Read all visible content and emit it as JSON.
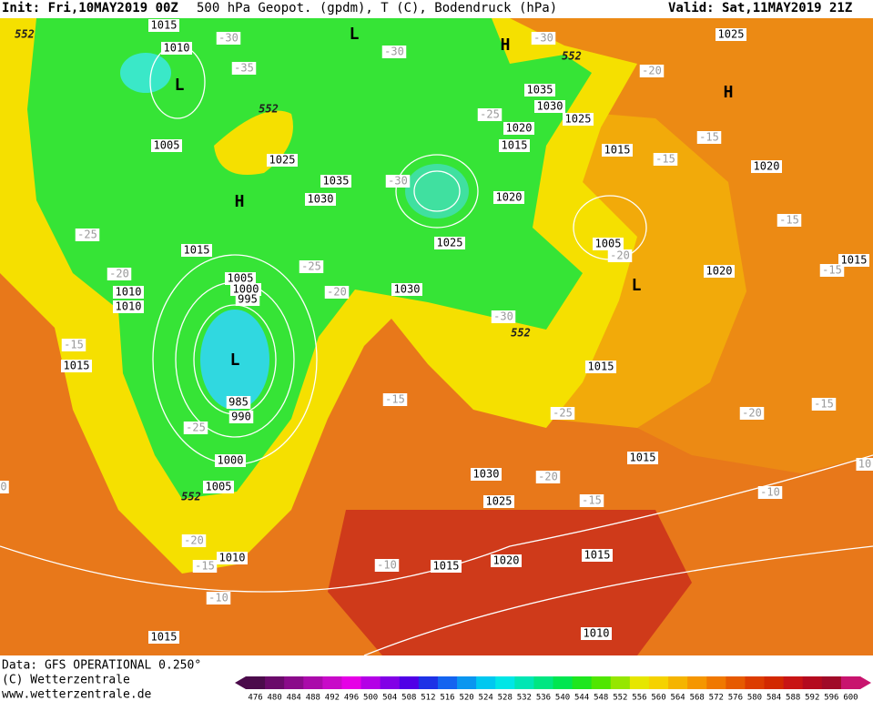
{
  "header": {
    "init": "Init: Fri,10MAY2019 00Z",
    "title": "500 hPa Geopot. (gpdm), T (C), Bodendruck (hPa)",
    "valid": "Valid: Sat,11MAY2019 21Z"
  },
  "footer": {
    "data": "Data: GFS OPERATIONAL 0.250°",
    "copyright": "(C) Wetterzentrale",
    "url": "www.wetterzentrale.de"
  },
  "color_scale": {
    "labels": [
      476,
      480,
      484,
      488,
      492,
      496,
      500,
      504,
      508,
      512,
      516,
      520,
      524,
      528,
      532,
      536,
      540,
      544,
      548,
      552,
      556,
      560,
      564,
      568,
      572,
      576,
      580,
      584,
      588,
      592,
      596,
      600
    ],
    "colors": [
      "#4b0b4b",
      "#6a0a6a",
      "#8a0a8a",
      "#aa0aaa",
      "#c80ac8",
      "#e600e6",
      "#b400e6",
      "#8200e6",
      "#5000e6",
      "#1e32e6",
      "#1464f0",
      "#0a96f0",
      "#00c8f0",
      "#00e6e6",
      "#00e6b4",
      "#00e682",
      "#00e650",
      "#1ee61e",
      "#50e600",
      "#96e600",
      "#e6e600",
      "#f5d200",
      "#f5b400",
      "#f59600",
      "#f07800",
      "#e65a00",
      "#dc3c00",
      "#d22800",
      "#c81414",
      "#b40a1e",
      "#a00a28",
      "#c8146e"
    ]
  },
  "map": {
    "pressure_labels": [
      1015,
      1010,
      1005,
      1025,
      1035,
      1030,
      1015,
      1010,
      1010,
      1005,
      1000,
      995,
      985,
      990,
      1000,
      1005,
      1015,
      1030,
      1025,
      1020,
      1015,
      1020,
      1035,
      1030,
      1025,
      1025,
      1015,
      1020,
      1005,
      1020,
      1015,
      1015,
      1015,
      1030,
      1025,
      1020,
      1015,
      1015,
      1010,
      1015,
      1010
    ],
    "temperature_labels": [
      -30,
      -35,
      -30,
      -30,
      -20,
      -25,
      -15,
      -15,
      -30,
      -15,
      -25,
      -20,
      -25,
      -20,
      -15,
      -20,
      -15,
      -30,
      -15,
      -25,
      -20,
      -15,
      -25,
      -20,
      -15,
      -10,
      -20,
      -15,
      -10,
      -10,
      10,
      0
    ],
    "geopotential_labels": [
      552,
      552,
      552,
      552,
      552
    ],
    "centers": [
      "L",
      "H",
      "L",
      "H",
      "H",
      "L",
      "L"
    ]
  }
}
